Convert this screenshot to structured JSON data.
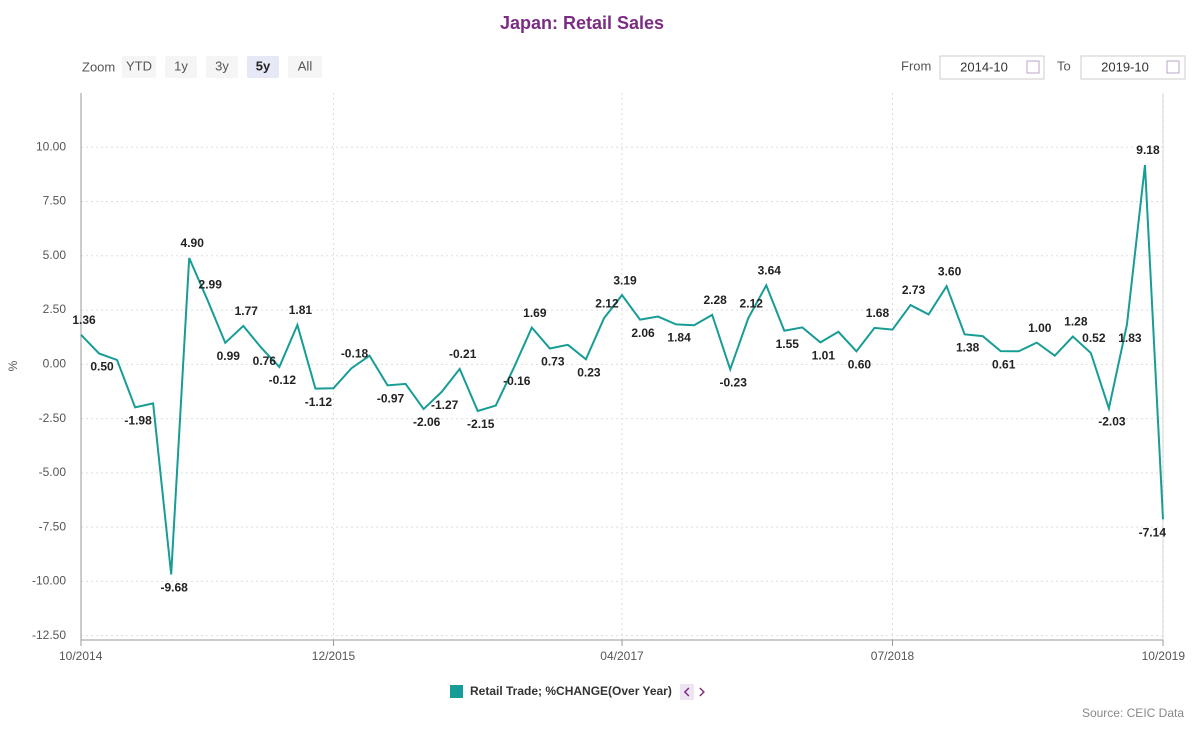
{
  "chart_data": {
    "type": "line",
    "title": "Japan: Retail Sales",
    "ylabel": "%",
    "x": [
      "2014-10",
      "2014-11",
      "2014-12",
      "2015-01",
      "2015-02",
      "2015-03",
      "2015-04",
      "2015-05",
      "2015-06",
      "2015-07",
      "2015-08",
      "2015-09",
      "2015-10",
      "2015-11",
      "2015-12",
      "2016-01",
      "2016-02",
      "2016-03",
      "2016-04",
      "2016-05",
      "2016-06",
      "2016-07",
      "2016-08",
      "2016-09",
      "2016-10",
      "2016-11",
      "2016-12",
      "2017-01",
      "2017-02",
      "2017-03",
      "2017-04",
      "2017-05",
      "2017-06",
      "2017-07",
      "2017-08",
      "2017-09",
      "2017-10",
      "2017-11",
      "2017-12",
      "2018-01",
      "2018-02",
      "2018-03",
      "2018-04",
      "2018-05",
      "2018-06",
      "2018-07",
      "2018-08",
      "2018-09",
      "2018-10",
      "2018-11",
      "2018-12",
      "2019-01",
      "2019-02",
      "2019-03",
      "2019-04",
      "2019-05",
      "2019-06",
      "2019-07",
      "2019-08",
      "2019-09",
      "2019-10"
    ],
    "xticks": [
      {
        "value": "2014-10",
        "label": "10/2014"
      },
      {
        "value": "2015-12",
        "label": "12/2015"
      },
      {
        "value": "2017-04",
        "label": "04/2017"
      },
      {
        "value": "2018-07",
        "label": "07/2018"
      },
      {
        "value": "2019-10",
        "label": "10/2019"
      }
    ],
    "series": [
      {
        "name": "Retail Trade; %CHANGE(Over Year)",
        "color": "#179c96",
        "values": [
          1.36,
          0.5,
          0.2,
          -1.98,
          -1.8,
          -9.68,
          4.9,
          2.99,
          0.99,
          1.77,
          0.76,
          -0.12,
          1.81,
          -1.12,
          -1.1,
          -0.18,
          0.4,
          -0.97,
          -0.9,
          -2.06,
          -1.27,
          -0.21,
          -2.15,
          -1.9,
          -0.16,
          1.69,
          0.73,
          0.9,
          0.23,
          2.12,
          3.19,
          2.06,
          2.2,
          1.84,
          1.8,
          2.28,
          -0.23,
          2.12,
          3.64,
          1.55,
          1.7,
          1.01,
          1.5,
          0.6,
          1.68,
          1.6,
          2.73,
          2.3,
          3.6,
          1.38,
          1.3,
          0.61,
          0.6,
          1.0,
          0.4,
          1.28,
          0.52,
          -2.03,
          1.83,
          9.18,
          -7.14
        ],
        "value_labels": [
          "1.36",
          "0.50",
          null,
          "-1.98",
          null,
          "-9.68",
          "4.90",
          "2.99",
          "0.99",
          "1.77",
          "0.76",
          "-0.12",
          "1.81",
          "-1.12",
          null,
          "-0.18",
          null,
          "-0.97",
          null,
          "-2.06",
          "-1.27",
          "-0.21",
          "-2.15",
          null,
          "-0.16",
          "1.69",
          "0.73",
          null,
          "0.23",
          "2.12",
          "3.19",
          "2.06",
          null,
          "1.84",
          null,
          "2.28",
          "-0.23",
          "2.12",
          "3.64",
          "1.55",
          null,
          "1.01",
          null,
          "0.60",
          "1.68",
          null,
          "2.73",
          null,
          "3.60",
          "1.38",
          null,
          "0.61",
          null,
          "1.00",
          null,
          "1.28",
          "0.52",
          "-2.03",
          "1.83",
          "9.18",
          "-7.14"
        ]
      }
    ],
    "ylim": [
      -12.7,
      12.5
    ],
    "yticks": [
      {
        "value": -12.5,
        "label": "-12.50"
      },
      {
        "value": -10,
        "label": "-10.00"
      },
      {
        "value": -7.5,
        "label": "-7.50"
      },
      {
        "value": -5,
        "label": "-5.00"
      },
      {
        "value": -2.5,
        "label": "-2.50"
      },
      {
        "value": 0,
        "label": "0.00"
      },
      {
        "value": 2.5,
        "label": "2.50"
      },
      {
        "value": 5,
        "label": "5.00"
      },
      {
        "value": 7.5,
        "label": "7.50"
      },
      {
        "value": 10,
        "label": "10.00"
      }
    ],
    "grid": true,
    "zoom": {
      "label": "Zoom",
      "options": [
        "YTD",
        "1y",
        "3y",
        "5y",
        "All"
      ],
      "active": 3
    },
    "range": {
      "from_label": "From",
      "from": "2014-10",
      "to_label": "To",
      "to": "2019-10"
    },
    "source": "Source: CEIC Data"
  }
}
